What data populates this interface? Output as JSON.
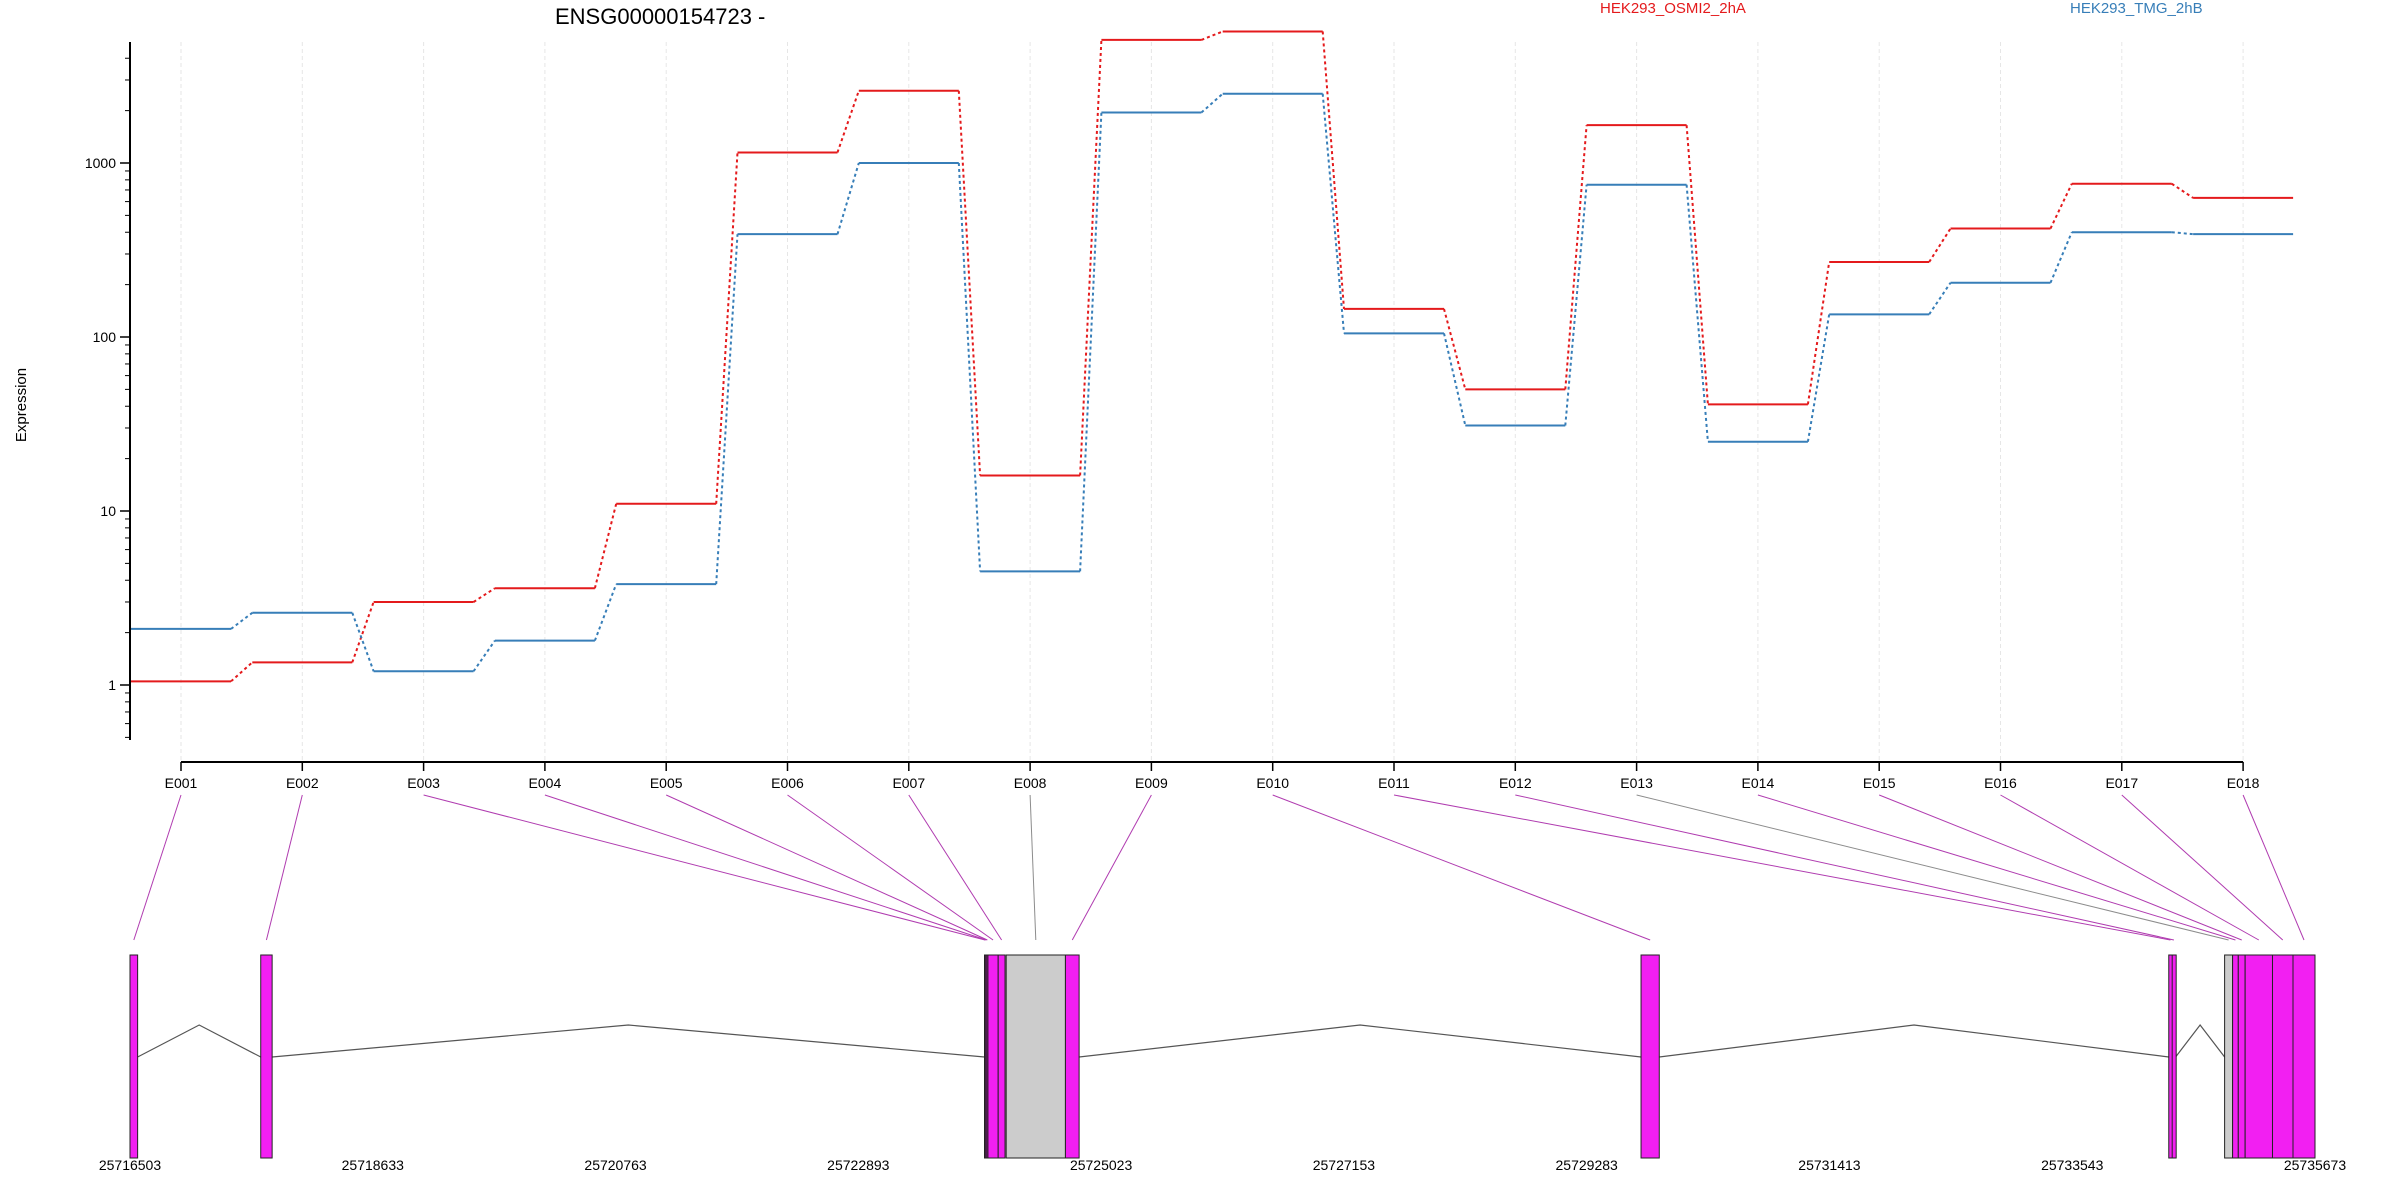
{
  "chart_data": {
    "type": "line",
    "title": "ENSG00000154723 -",
    "ylabel": "Expression",
    "yscale": "log",
    "yticks": [
      1,
      10,
      100,
      1000
    ],
    "categories": [
      "E001",
      "E002",
      "E003",
      "E004",
      "E005",
      "E006",
      "E007",
      "E008",
      "E009",
      "E010",
      "E011",
      "E012",
      "E013",
      "E014",
      "E015",
      "E016",
      "E017",
      "E018"
    ],
    "series": [
      {
        "name": "HEK293_OSMI2_2hA",
        "color": "#e41a1c",
        "values": [
          1.05,
          1.35,
          3.0,
          3.6,
          11,
          1150,
          2600,
          16,
          5100,
          5700,
          145,
          50,
          1650,
          41,
          270,
          420,
          760,
          630
        ]
      },
      {
        "name": "HEK293_TMG_2hB",
        "color": "#377eb8",
        "values": [
          2.1,
          2.6,
          1.2,
          1.8,
          3.8,
          390,
          1000,
          4.5,
          1950,
          2500,
          105,
          31,
          750,
          25,
          135,
          205,
          400,
          390
        ]
      }
    ],
    "gene_model": {
      "coordinate_labels": [
        "25716503",
        "25718633",
        "25720763",
        "25722893",
        "25725023",
        "25727153",
        "25729283",
        "25731413",
        "25733543",
        "25735673"
      ],
      "coord_start": 25716503,
      "coord_end": 25735673,
      "exon_color": "#f21ff2",
      "other_color": "#cccccc",
      "exons": [
        {
          "start": 25716503,
          "end": 25716570,
          "type": "exon",
          "label": "E001"
        },
        {
          "start": 25717650,
          "end": 25717750,
          "type": "exon",
          "label": "E002"
        },
        {
          "start": 25724000,
          "end": 25724010,
          "type": "exon",
          "label": "E003"
        },
        {
          "start": 25724010,
          "end": 25724020,
          "type": "exon",
          "label": "E004"
        },
        {
          "start": 25724020,
          "end": 25724030,
          "type": "exon",
          "label": "E005"
        },
        {
          "start": 25724030,
          "end": 25724120,
          "type": "exon",
          "label": "E006"
        },
        {
          "start": 25724120,
          "end": 25724180,
          "type": "exon",
          "label": "E007"
        },
        {
          "start": 25724190,
          "end": 25724710,
          "type": "other",
          "label": "E008"
        },
        {
          "start": 25724710,
          "end": 25724830,
          "type": "exon",
          "label": "E009"
        },
        {
          "start": 25729760,
          "end": 25729920,
          "type": "exon",
          "label": "E010"
        },
        {
          "start": 25734390,
          "end": 25734420,
          "type": "exon",
          "label": "E011"
        },
        {
          "start": 25734420,
          "end": 25734450,
          "type": "exon",
          "label": "E012"
        },
        {
          "start": 25734880,
          "end": 25734950,
          "type": "other",
          "label": "E013"
        },
        {
          "start": 25734950,
          "end": 25735000,
          "type": "exon",
          "label": "E014"
        },
        {
          "start": 25735000,
          "end": 25735060,
          "type": "exon",
          "label": "E015"
        },
        {
          "start": 25735060,
          "end": 25735300,
          "type": "exon",
          "label": "E016"
        },
        {
          "start": 25735300,
          "end": 25735480,
          "type": "exon",
          "label": "E017"
        },
        {
          "start": 25735480,
          "end": 25735673,
          "type": "exon",
          "label": "E018"
        }
      ],
      "introns": [
        [
          25716570,
          25717650
        ],
        [
          25717750,
          25724000
        ],
        [
          25724830,
          25729760
        ],
        [
          25729920,
          25734390
        ],
        [
          25734450,
          25734880
        ]
      ]
    }
  }
}
